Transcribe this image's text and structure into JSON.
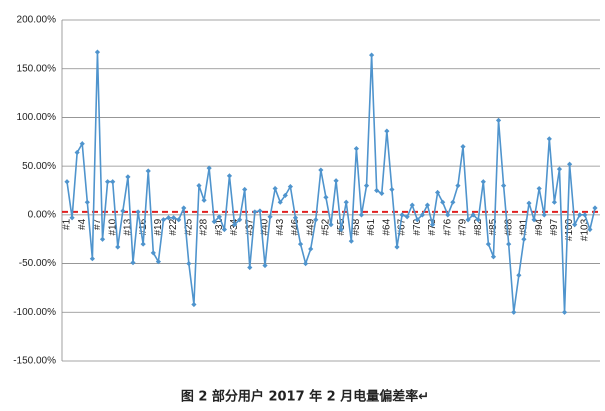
{
  "chart_data": {
    "type": "line",
    "caption": "图 2  部分用户 2017 年 2 月电量偏差率↵",
    "categories": [
      "#1",
      null,
      null,
      "#4",
      null,
      null,
      "#7",
      null,
      null,
      "#10",
      null,
      null,
      "#13",
      null,
      null,
      "#16",
      null,
      null,
      "#19",
      null,
      null,
      "#22",
      null,
      null,
      "#25",
      null,
      null,
      "#28",
      null,
      null,
      "#31",
      null,
      null,
      "#34",
      null,
      null,
      "#37",
      null,
      null,
      "#40",
      null,
      null,
      "#43",
      null,
      null,
      "#46",
      null,
      null,
      "#49",
      null,
      null,
      "#52",
      null,
      null,
      "#55",
      null,
      null,
      "#58",
      null,
      null,
      "#61",
      null,
      null,
      "#64",
      null,
      null,
      "#67",
      null,
      null,
      "#70",
      null,
      null,
      "#73",
      null,
      null,
      "#76",
      null,
      null,
      "#79",
      null,
      null,
      "#82",
      null,
      null,
      "#85",
      null,
      null,
      "#88",
      null,
      null,
      "#91",
      null,
      null,
      "#94",
      null,
      null,
      "#97",
      null,
      null,
      "#100",
      null,
      null,
      "#103",
      null,
      null
    ],
    "series": [
      {
        "color": "#4f94cd",
        "values": [
          34,
          -3,
          64,
          73,
          13,
          -45,
          167,
          -25,
          34,
          34,
          -33,
          4,
          39,
          -49,
          3,
          -30,
          45,
          -39,
          -48,
          -5,
          -3,
          -3,
          -5,
          7,
          -50,
          -92,
          30,
          15,
          48,
          -7,
          -2,
          -15,
          40,
          -10,
          -5,
          26,
          -54,
          3,
          4,
          -52,
          -2,
          27,
          13,
          20,
          29,
          -3,
          -30,
          -50,
          -35,
          -5,
          46,
          18,
          -10,
          35,
          -15,
          13,
          -27,
          68,
          0,
          30,
          164,
          25,
          22,
          86,
          26,
          -33,
          0,
          -2,
          10,
          -5,
          0,
          10,
          -10,
          23,
          13,
          0,
          13,
          30,
          70,
          -5,
          0,
          -5,
          34,
          -30,
          -43,
          97,
          30,
          -30,
          -100,
          -62,
          -25,
          12,
          -5,
          27,
          0,
          78,
          13,
          47,
          -100,
          52,
          -10,
          0,
          0,
          -15,
          7
        ]
      }
    ],
    "reference_line": {
      "value": 3,
      "color": "#e02020"
    },
    "ylim": [
      -150,
      200
    ],
    "yticks": [
      {
        "value": -150,
        "label": "-150.00%"
      },
      {
        "value": -100,
        "label": "-100.00%"
      },
      {
        "value": -50,
        "label": "-50.00%"
      },
      {
        "value": 0,
        "label": "0.00%"
      },
      {
        "value": 50,
        "label": "50.00%"
      },
      {
        "value": 100,
        "label": "100.00%"
      },
      {
        "value": 150,
        "label": "150.00%"
      },
      {
        "value": 200,
        "label": "200.00%"
      }
    ],
    "grid": true
  }
}
